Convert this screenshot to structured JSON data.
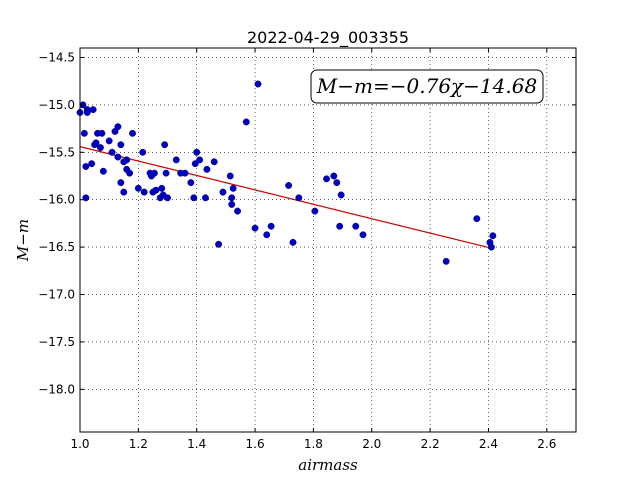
{
  "chart_data": {
    "type": "scatter",
    "title": "2022-04-29_003355",
    "xlabel": "airmass",
    "ylabel": "M−m",
    "xlim": [
      1.0,
      2.7
    ],
    "ylim": [
      -14.4,
      -18.45
    ],
    "y_inverted": true,
    "grid": true,
    "xticks": [
      1.0,
      1.2,
      1.4,
      1.6,
      1.8,
      2.0,
      2.2,
      2.4,
      2.6
    ],
    "xtick_labels": [
      "1.0",
      "1.2",
      "1.4",
      "1.6",
      "1.8",
      "2.0",
      "2.2",
      "2.4",
      "2.6"
    ],
    "yticks": [
      -14.5,
      -15.0,
      -15.5,
      -16.0,
      -16.5,
      -17.0,
      -17.5,
      -18.0
    ],
    "ytick_labels": [
      "−14.5",
      "−15.0",
      "−15.5",
      "−16.0",
      "−16.5",
      "−17.0",
      "−17.5",
      "−18.0"
    ],
    "annotation": "M−m=−0.76χ−14.68",
    "colors": {
      "points": "#0000bf",
      "fit_line": "#cc0000"
    },
    "fit": {
      "slope": -0.76,
      "intercept": -14.68,
      "x": [
        1.0,
        2.41
      ]
    },
    "points": [
      [
        1.0,
        -15.08
      ],
      [
        1.01,
        -15.0
      ],
      [
        1.015,
        -15.3
      ],
      [
        1.025,
        -15.05
      ],
      [
        1.025,
        -15.08
      ],
      [
        1.02,
        -15.65
      ],
      [
        1.02,
        -15.98
      ],
      [
        1.045,
        -15.05
      ],
      [
        1.04,
        -15.62
      ],
      [
        1.05,
        -15.42
      ],
      [
        1.055,
        -15.4
      ],
      [
        1.06,
        -15.3
      ],
      [
        1.07,
        -15.45
      ],
      [
        1.075,
        -15.3
      ],
      [
        1.08,
        -15.7
      ],
      [
        1.1,
        -15.38
      ],
      [
        1.11,
        -15.5
      ],
      [
        1.12,
        -15.28
      ],
      [
        1.13,
        -15.23
      ],
      [
        1.13,
        -15.55
      ],
      [
        1.14,
        -15.42
      ],
      [
        1.14,
        -15.82
      ],
      [
        1.15,
        -15.6
      ],
      [
        1.15,
        -15.92
      ],
      [
        1.16,
        -15.58
      ],
      [
        1.16,
        -15.68
      ],
      [
        1.17,
        -15.72
      ],
      [
        1.18,
        -15.3
      ],
      [
        1.2,
        -15.88
      ],
      [
        1.215,
        -15.5
      ],
      [
        1.22,
        -15.92
      ],
      [
        1.24,
        -15.72
      ],
      [
        1.245,
        -15.75
      ],
      [
        1.25,
        -15.92
      ],
      [
        1.255,
        -15.72
      ],
      [
        1.26,
        -15.9
      ],
      [
        1.275,
        -15.98
      ],
      [
        1.28,
        -15.88
      ],
      [
        1.285,
        -15.95
      ],
      [
        1.29,
        -15.42
      ],
      [
        1.295,
        -15.72
      ],
      [
        1.3,
        -15.98
      ],
      [
        1.33,
        -15.58
      ],
      [
        1.345,
        -15.72
      ],
      [
        1.36,
        -15.72
      ],
      [
        1.38,
        -15.82
      ],
      [
        1.39,
        -15.98
      ],
      [
        1.395,
        -15.62
      ],
      [
        1.4,
        -15.5
      ],
      [
        1.41,
        -15.58
      ],
      [
        1.43,
        -15.98
      ],
      [
        1.435,
        -15.68
      ],
      [
        1.46,
        -15.6
      ],
      [
        1.475,
        -16.47
      ],
      [
        1.49,
        -15.92
      ],
      [
        1.515,
        -15.75
      ],
      [
        1.52,
        -16.05
      ],
      [
        1.52,
        -15.98
      ],
      [
        1.525,
        -15.88
      ],
      [
        1.54,
        -16.12
      ],
      [
        1.57,
        -15.18
      ],
      [
        1.6,
        -16.3
      ],
      [
        1.61,
        -14.78
      ],
      [
        1.64,
        -16.37
      ],
      [
        1.655,
        -16.28
      ],
      [
        1.715,
        -15.85
      ],
      [
        1.73,
        -16.45
      ],
      [
        1.75,
        -15.98
      ],
      [
        1.805,
        -16.12
      ],
      [
        1.845,
        -15.78
      ],
      [
        1.87,
        -15.75
      ],
      [
        1.88,
        -15.82
      ],
      [
        1.89,
        -16.28
      ],
      [
        1.895,
        -15.95
      ],
      [
        1.945,
        -16.28
      ],
      [
        1.97,
        -16.37
      ],
      [
        2.255,
        -16.65
      ],
      [
        2.36,
        -16.2
      ],
      [
        2.405,
        -16.45
      ],
      [
        2.41,
        -16.5
      ],
      [
        2.415,
        -16.38
      ]
    ]
  }
}
